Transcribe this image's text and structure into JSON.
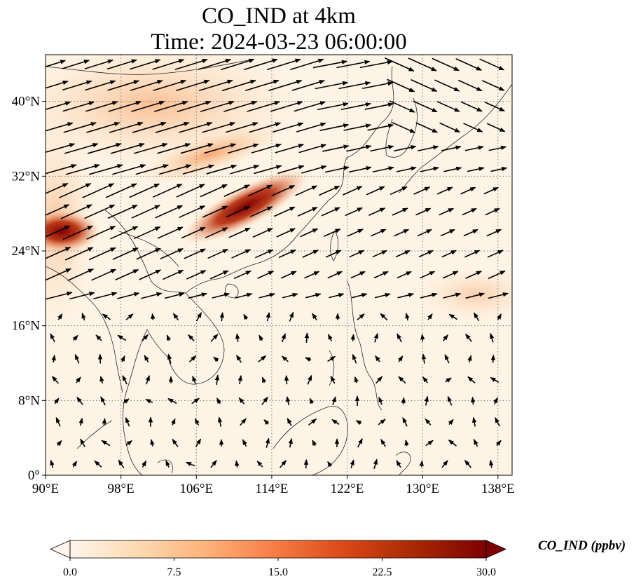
{
  "title_line1": "CO_IND at 4km",
  "title_line2": "Time: 2024-03-23 06:00:00",
  "colorbar": {
    "label": "CO_IND (ppbv)",
    "ticks": [
      "0.0",
      "7.5",
      "15.0",
      "22.5",
      "30.0"
    ],
    "range": [
      0,
      30
    ],
    "colormap": [
      "#fff5eb",
      "#fdd9b0",
      "#fdb077",
      "#f67a43",
      "#d94616",
      "#a52803",
      "#7f0000"
    ]
  },
  "map": {
    "extent": {
      "lon": [
        90,
        139.5
      ],
      "lat": [
        0,
        45
      ]
    },
    "lon_ticks": [
      "90°E",
      "98°E",
      "106°E",
      "114°E",
      "122°E",
      "130°E",
      "138°E"
    ],
    "lat_ticks": [
      "0°",
      "8°N",
      "16°N",
      "24°N",
      "32°N",
      "40°N"
    ],
    "gridlines": true,
    "basemap_color": "#fef4e6"
  },
  "plumes": [
    {
      "name": "northeast-india-hotspot",
      "lon": 92.0,
      "lat": 26.6,
      "level": 1.0
    },
    {
      "name": "yangtze-plume",
      "lon": 112.5,
      "lat": 28.7,
      "level": 0.95
    },
    {
      "name": "central-china-band",
      "lon": 108.0,
      "lat": 33.0,
      "level": 0.5
    }
  ]
}
